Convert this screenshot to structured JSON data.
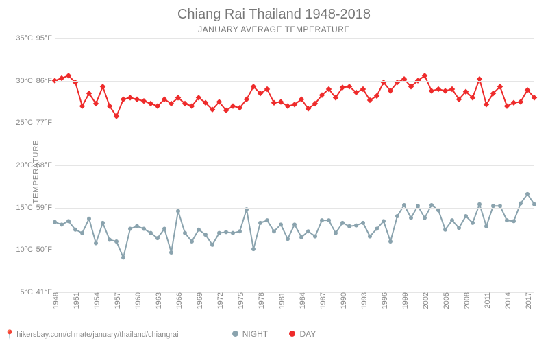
{
  "chart": {
    "type": "line",
    "title": "Chiang Rai Thailand 1948-2018",
    "subtitle": "JANUARY AVERAGE TEMPERATURE",
    "y_axis_label": "TEMPERATURE",
    "background_color": "#ffffff",
    "grid_color": "#e5e5e5",
    "text_color": "#888888",
    "title_color": "#777777",
    "title_fontsize": 20,
    "subtitle_fontsize": 12,
    "label_fontsize": 11,
    "ylim_c": [
      5,
      35
    ],
    "y_ticks": [
      {
        "c": "5°C",
        "f": "41°F",
        "val": 5
      },
      {
        "c": "10°C",
        "f": "50°F",
        "val": 10
      },
      {
        "c": "15°C",
        "f": "59°F",
        "val": 15
      },
      {
        "c": "20°C",
        "f": "68°F",
        "val": 20
      },
      {
        "c": "25°C",
        "f": "77°F",
        "val": 25
      },
      {
        "c": "30°C",
        "f": "86°F",
        "val": 30
      },
      {
        "c": "35°C",
        "f": "95°F",
        "val": 35
      }
    ],
    "xlim": [
      1948,
      2018
    ],
    "x_ticks": [
      1948,
      1951,
      1954,
      1957,
      1960,
      1963,
      1966,
      1969,
      1972,
      1975,
      1978,
      1981,
      1984,
      1987,
      1990,
      1993,
      1996,
      1999,
      2002,
      2005,
      2008,
      2011,
      2014,
      2017
    ],
    "years": [
      1948,
      1949,
      1950,
      1951,
      1952,
      1953,
      1954,
      1955,
      1956,
      1957,
      1958,
      1959,
      1960,
      1961,
      1962,
      1963,
      1964,
      1965,
      1966,
      1967,
      1968,
      1969,
      1970,
      1971,
      1972,
      1973,
      1974,
      1975,
      1976,
      1977,
      1978,
      1979,
      1980,
      1981,
      1982,
      1983,
      1984,
      1985,
      1986,
      1987,
      1988,
      1989,
      1990,
      1991,
      1992,
      1993,
      1994,
      1995,
      1996,
      1997,
      1998,
      1999,
      2000,
      2001,
      2002,
      2003,
      2004,
      2005,
      2006,
      2007,
      2008,
      2009,
      2010,
      2011,
      2012,
      2013,
      2014,
      2015,
      2016,
      2017,
      2018
    ],
    "series": {
      "day": {
        "label": "DAY",
        "color": "#ee2b2b",
        "line_width": 2,
        "marker": "diamond",
        "marker_size": 6,
        "values": [
          30.0,
          30.3,
          30.6,
          29.8,
          27.0,
          28.5,
          27.3,
          29.3,
          27.0,
          25.8,
          27.8,
          28.0,
          27.8,
          27.6,
          27.3,
          27.0,
          27.8,
          27.3,
          28.0,
          27.3,
          27.0,
          28.0,
          27.4,
          26.6,
          27.5,
          26.5,
          27.0,
          26.8,
          27.8,
          29.3,
          28.5,
          29.0,
          27.4,
          27.5,
          27.0,
          27.2,
          27.8,
          26.7,
          27.3,
          28.3,
          29.0,
          28.0,
          29.2,
          29.3,
          28.6,
          29.0,
          27.7,
          28.2,
          29.8,
          28.8,
          29.8,
          30.2,
          29.3,
          30.0,
          30.6,
          28.8,
          29.0,
          28.8,
          29.0,
          27.8,
          28.7,
          28.0,
          30.2,
          27.2,
          28.5,
          29.3,
          27.0,
          27.4,
          27.5,
          28.9,
          28.0
        ]
      },
      "night": {
        "label": "NIGHT",
        "color": "#8aa3ae",
        "line_width": 2,
        "marker": "circle",
        "marker_size": 6,
        "values": [
          13.3,
          13.0,
          13.4,
          12.4,
          12.0,
          13.7,
          10.8,
          13.2,
          11.2,
          11.0,
          9.1,
          12.5,
          12.8,
          12.5,
          12.0,
          11.4,
          12.5,
          9.7,
          14.6,
          12.0,
          11.0,
          12.4,
          11.8,
          10.6,
          12.0,
          12.1,
          12.0,
          12.2,
          14.8,
          10.1,
          13.2,
          13.5,
          12.2,
          13.0,
          11.3,
          13.0,
          11.5,
          12.2,
          11.6,
          13.5,
          13.5,
          12.0,
          13.2,
          12.8,
          12.9,
          13.2,
          11.6,
          12.5,
          13.4,
          11.0,
          14.0,
          15.3,
          13.8,
          15.2,
          13.8,
          15.3,
          14.7,
          12.4,
          13.5,
          12.6,
          14.0,
          13.2,
          15.4,
          12.8,
          15.2,
          15.2,
          13.5,
          13.4,
          15.5,
          16.6,
          15.4
        ]
      }
    },
    "legend_position": "bottom"
  },
  "footer": {
    "url": "hikersbay.com/climate/january/thailand/chiangrai",
    "pin_color": "#e03030"
  }
}
